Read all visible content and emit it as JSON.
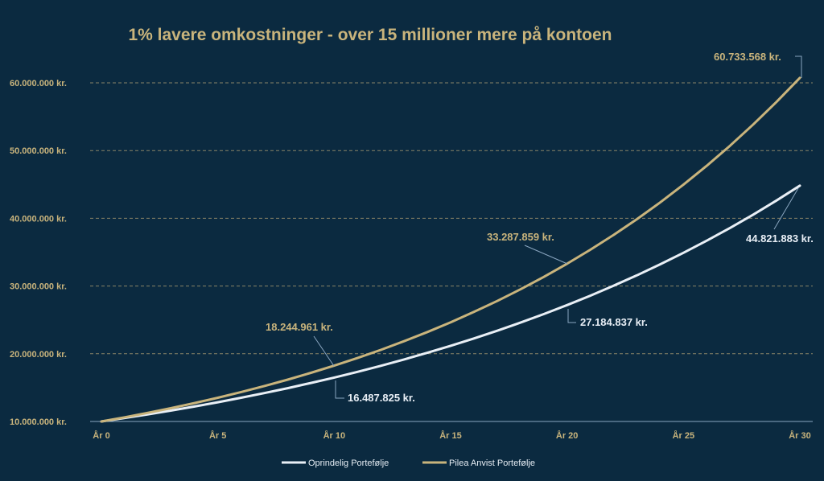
{
  "chart_data": {
    "type": "line",
    "title": "1% lavere omkostninger - over 15 millioner mere på kontoen",
    "xlabel": "",
    "ylabel": "",
    "x": [
      0,
      1,
      2,
      3,
      4,
      5,
      6,
      7,
      8,
      9,
      10,
      11,
      12,
      13,
      14,
      15,
      16,
      17,
      18,
      19,
      20,
      21,
      22,
      23,
      24,
      25,
      26,
      27,
      28,
      29,
      30
    ],
    "x_tick_labels": [
      "År 0",
      "År 5",
      "År 10",
      "År 15",
      "År 20",
      "År 25",
      "År 30"
    ],
    "x_tick_values": [
      0,
      5,
      10,
      15,
      20,
      25,
      30
    ],
    "y_tick_labels": [
      "10.000.000 kr.",
      "20.000.000 kr.",
      "30.000.000 kr.",
      "40.000.000 kr.",
      "50.000.000 kr.",
      "60.000.000 kr."
    ],
    "y_tick_values": [
      10000000,
      20000000,
      30000000,
      40000000,
      50000000,
      60000000
    ],
    "ylim": [
      10000000,
      62000000
    ],
    "xlim": [
      0,
      30
    ],
    "grid": "horizontal dashed",
    "legend": "bottom",
    "series": [
      {
        "name": "Oprindelig Portefølje",
        "color": "#e9eff6",
        "values": [
          10000000,
          10513000,
          11052000,
          11618000,
          12214000,
          12840000,
          13499000,
          14191000,
          14918000,
          15683000,
          16487825,
          17333000,
          18221000,
          19155000,
          20138000,
          21170000,
          22255000,
          23396000,
          24596000,
          25857000,
          27184837,
          28577000,
          30042000,
          31582000,
          33201000,
          34903000,
          36693000,
          38574000,
          40552000,
          42631000,
          44821883
        ]
      },
      {
        "name": "Pilea Anvist Portefølje",
        "color": "#c9b47c",
        "values": [
          10000000,
          10620000,
          11278000,
          11977000,
          12719000,
          13508000,
          14345000,
          15234000,
          16178000,
          17181000,
          18244961,
          19376000,
          20576000,
          21852000,
          23206000,
          24645000,
          26173000,
          27795000,
          29518000,
          31347000,
          33287859,
          35351000,
          37542000,
          39869000,
          42340000,
          44967000,
          47754000,
          50714000,
          53857000,
          57194000,
          60733568
        ]
      }
    ],
    "annotations": [
      {
        "series": 1,
        "x": 10,
        "text": "18.244.961 kr."
      },
      {
        "series": 0,
        "x": 10,
        "text": "16.487.825 kr."
      },
      {
        "series": 1,
        "x": 20,
        "text": "33.287.859 kr."
      },
      {
        "series": 0,
        "x": 20,
        "text": "27.184.837 kr."
      },
      {
        "series": 0,
        "x": 30,
        "text": "44.821.883 kr."
      },
      {
        "series": 1,
        "x": 30,
        "text": "60.733.568 kr."
      }
    ]
  }
}
